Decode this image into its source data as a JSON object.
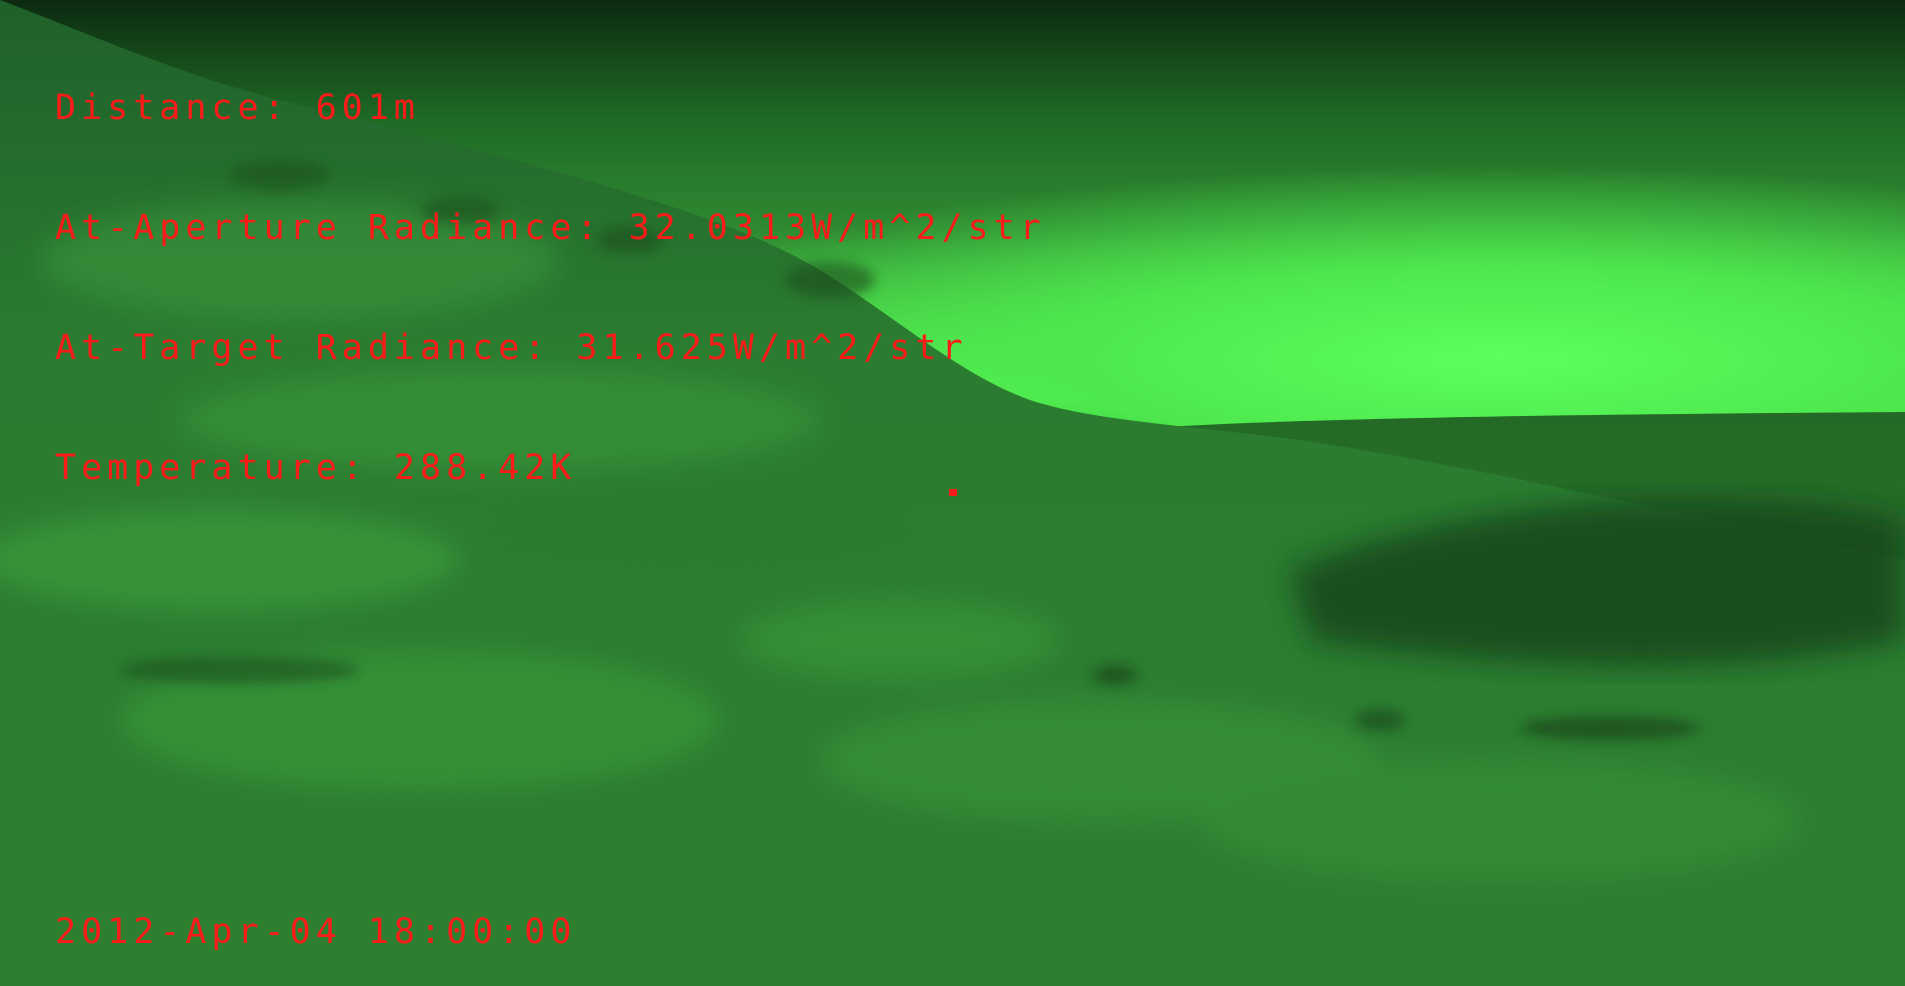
{
  "hud": {
    "distance": "Distance: 601m",
    "aperture_radiance": "At-Aperture Radiance: 32.0313W/m^2/str",
    "target_radiance": "At-Target Radiance: 31.625W/m^2/str",
    "temperature": "Temperature: 288.42K"
  },
  "timestamp": "2012-Apr-04 18:00:00",
  "colors": {
    "overlay_text": "#ff1a1a",
    "sky": "#54ff54",
    "terrain": "#2c7a2e"
  },
  "view": {
    "reticle": "target-reticle"
  }
}
